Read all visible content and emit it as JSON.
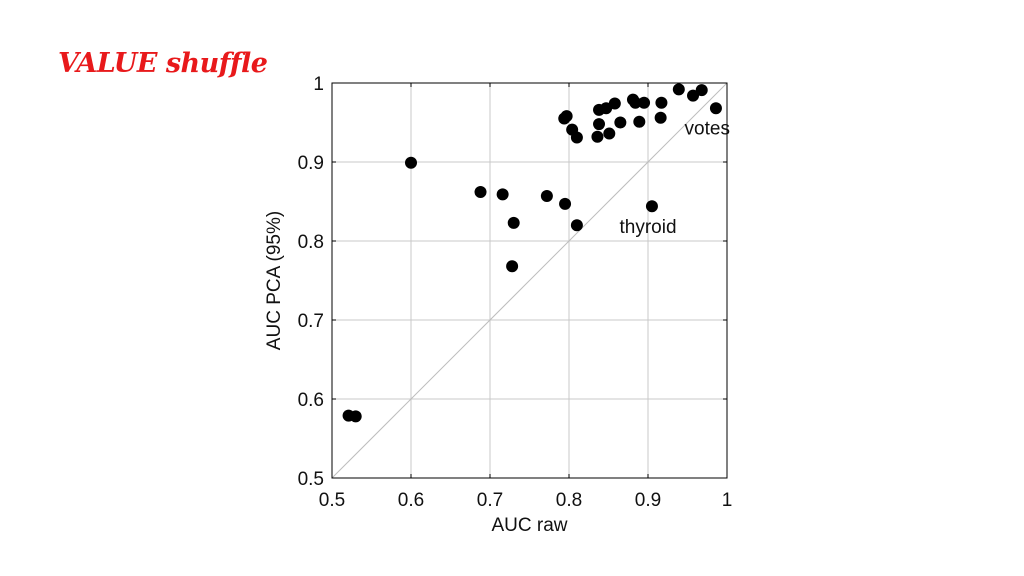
{
  "slide": {
    "title": "VALUE shuffle"
  },
  "chart_data": {
    "type": "scatter",
    "title": "",
    "xlabel": "AUC raw",
    "ylabel": "AUC PCA (95%)",
    "xlim": [
      0.5,
      1
    ],
    "ylim": [
      0.5,
      1
    ],
    "xticks": [
      "0.5",
      "0.6",
      "0.7",
      "0.8",
      "0.9",
      "1"
    ],
    "yticks": [
      "0.5",
      "0.6",
      "0.7",
      "0.8",
      "0.9",
      "1"
    ],
    "grid": true,
    "reference_line": "y = x",
    "point_color": "#000000",
    "points": [
      {
        "x": 0.521,
        "y": 0.579
      },
      {
        "x": 0.53,
        "y": 0.578
      },
      {
        "x": 0.6,
        "y": 0.899
      },
      {
        "x": 0.688,
        "y": 0.862
      },
      {
        "x": 0.716,
        "y": 0.859
      },
      {
        "x": 0.73,
        "y": 0.823
      },
      {
        "x": 0.728,
        "y": 0.768
      },
      {
        "x": 0.772,
        "y": 0.857
      },
      {
        "x": 0.795,
        "y": 0.847
      },
      {
        "x": 0.81,
        "y": 0.82
      },
      {
        "x": 0.794,
        "y": 0.955
      },
      {
        "x": 0.797,
        "y": 0.958
      },
      {
        "x": 0.804,
        "y": 0.941
      },
      {
        "x": 0.81,
        "y": 0.931
      },
      {
        "x": 0.836,
        "y": 0.932
      },
      {
        "x": 0.838,
        "y": 0.948
      },
      {
        "x": 0.838,
        "y": 0.966
      },
      {
        "x": 0.847,
        "y": 0.968
      },
      {
        "x": 0.851,
        "y": 0.936
      },
      {
        "x": 0.858,
        "y": 0.974
      },
      {
        "x": 0.865,
        "y": 0.95
      },
      {
        "x": 0.881,
        "y": 0.979
      },
      {
        "x": 0.884,
        "y": 0.975
      },
      {
        "x": 0.889,
        "y": 0.951
      },
      {
        "x": 0.895,
        "y": 0.975
      },
      {
        "x": 0.905,
        "y": 0.844
      },
      {
        "x": 0.916,
        "y": 0.956
      },
      {
        "x": 0.917,
        "y": 0.975
      },
      {
        "x": 0.939,
        "y": 0.992
      },
      {
        "x": 0.957,
        "y": 0.984
      },
      {
        "x": 0.968,
        "y": 0.991
      },
      {
        "x": 0.986,
        "y": 0.968
      }
    ],
    "annotations": [
      {
        "text": "votes",
        "x": 0.975,
        "y": 0.935
      },
      {
        "text": "thyroid",
        "x": 0.9,
        "y": 0.81
      }
    ]
  }
}
